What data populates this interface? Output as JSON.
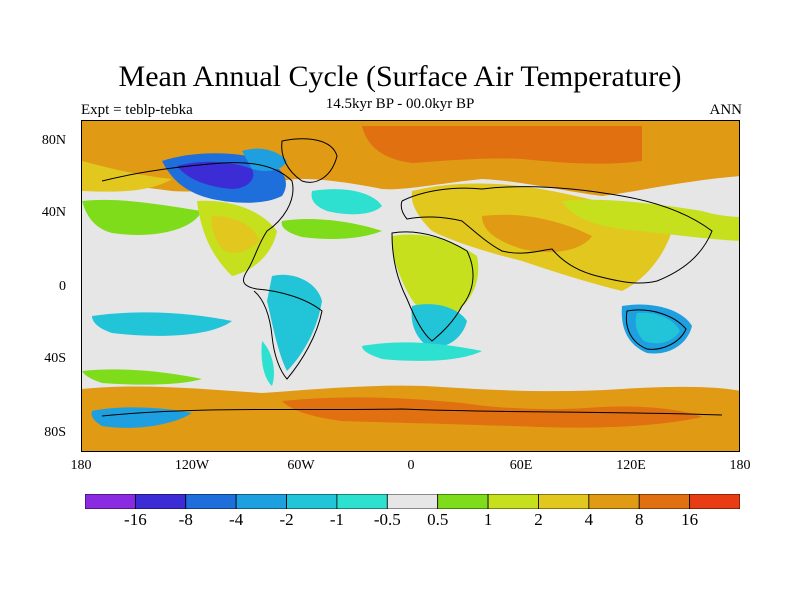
{
  "header": {
    "title": "Mean Annual Cycle (Surface Air Temperature)",
    "subtitle": "14.5kyr BP - 00.0kyr BP",
    "left_label": "Expt = teblp-tebka",
    "right_label": "ANN"
  },
  "axes": {
    "y_ticks": [
      "80N",
      "40N",
      "0",
      "40S",
      "80S"
    ],
    "x_ticks": [
      "180",
      "120W",
      "60W",
      "0",
      "60E",
      "120E",
      "180"
    ]
  },
  "colorbar": {
    "colors": [
      "#8a2be2",
      "#3b2cd6",
      "#1e6fdc",
      "#1ea0e0",
      "#22c4d8",
      "#2ee0d0",
      "#e6e6e6",
      "#7fdc1a",
      "#c6e01e",
      "#e2c81e",
      "#e09a14",
      "#e07010",
      "#e83c14"
    ],
    "labels": [
      "-16",
      "-8",
      "-4",
      "-2",
      "-1",
      "-0.5",
      "0.5",
      "1",
      "2",
      "4",
      "8",
      "16"
    ]
  }
}
